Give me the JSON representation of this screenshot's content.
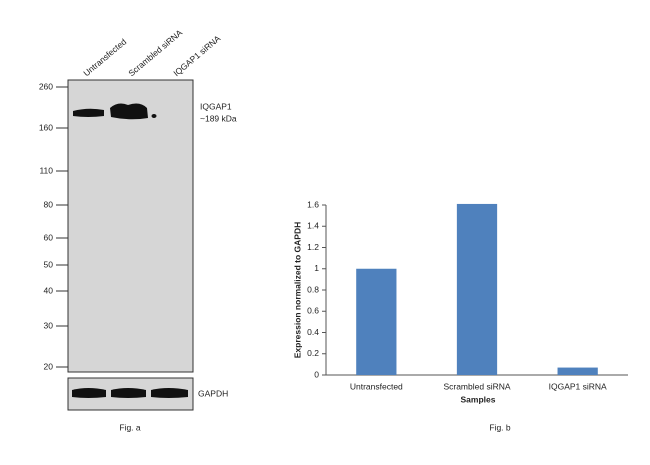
{
  "blot": {
    "lanes": [
      "Untransfected",
      "Scrambled siRNA",
      "IQGAP1 siRNA"
    ],
    "markers": [
      "260",
      "160",
      "110",
      "80",
      "60",
      "50",
      "40",
      "30",
      "20"
    ],
    "band_label": "IQGAP1",
    "band_size": "~189 kDa",
    "control_label": "GAPDH",
    "caption": "Fig. a"
  },
  "chart_data": {
    "type": "bar",
    "caption": "Fig. b",
    "x_label": "Samples",
    "y_label": "Expression normalized to GAPDH",
    "categories": [
      "Untransfected",
      "Scrambled siRNA",
      "IQGAP1 siRNA"
    ],
    "values": [
      1,
      1.61,
      0.07
    ],
    "color": "#4f81bd",
    "ylim": [
      0,
      1.6
    ],
    "yticks": [
      0,
      0.2,
      0.4,
      0.6,
      0.8,
      1,
      1.2,
      1.4,
      1.6
    ]
  }
}
